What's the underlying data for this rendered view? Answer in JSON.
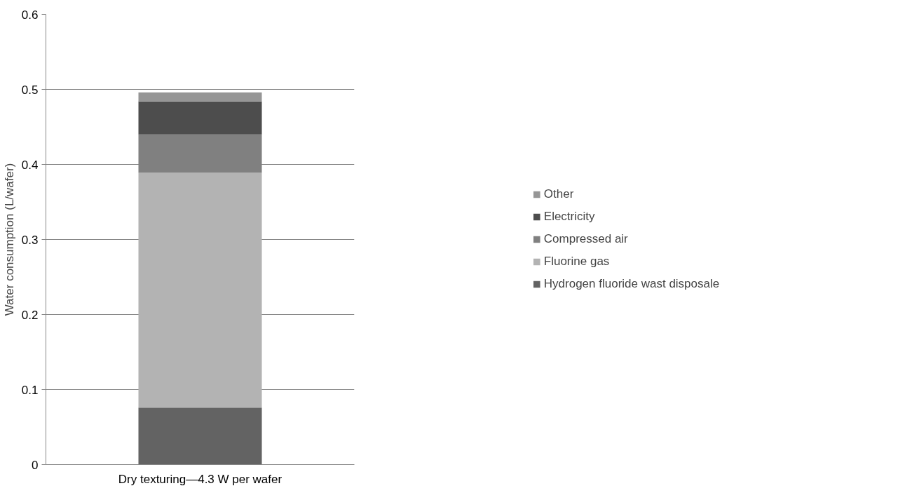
{
  "chart_data": {
    "type": "bar",
    "stacked": true,
    "ylabel": "Water consumption (L/wafer)",
    "categories": [
      "Dry texturing—4.3 W per wafer"
    ],
    "series": [
      {
        "name": "Hydrogen fluoride wast disposale",
        "color": "#636363",
        "values": [
          0.076
        ]
      },
      {
        "name": "Fluorine gas",
        "color": "#b3b3b3",
        "values": [
          0.313
        ]
      },
      {
        "name": "Compressed air",
        "color": "#808080",
        "values": [
          0.051
        ]
      },
      {
        "name": "Electricity",
        "color": "#4d4d4d",
        "values": [
          0.044
        ]
      },
      {
        "name": "Other",
        "color": "#969696",
        "values": [
          0.012
        ]
      }
    ],
    "ylim": [
      0,
      0.6
    ],
    "yticks": [
      0,
      0.1,
      0.2,
      0.3,
      0.4,
      0.5,
      0.6
    ],
    "grid": "y",
    "legend": "right"
  }
}
